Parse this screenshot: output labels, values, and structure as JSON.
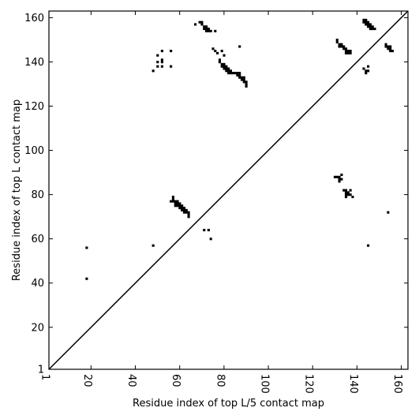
{
  "chart_data": {
    "type": "heatmap",
    "title": "",
    "xlabel": "Residue index of top L/5 contact map",
    "ylabel": "Residue index of top L contact map",
    "xlim": [
      1,
      163
    ],
    "ylim": [
      1,
      163
    ],
    "xticks": [
      1,
      20,
      40,
      60,
      80,
      100,
      120,
      140,
      160
    ],
    "yticks": [
      1,
      20,
      40,
      60,
      80,
      100,
      120,
      140,
      160
    ],
    "grid": false,
    "color": "#000000",
    "diagonal": true,
    "contacts": [
      [
        18,
        56
      ],
      [
        18,
        42
      ],
      [
        48,
        57
      ],
      [
        71,
        64
      ],
      [
        73,
        64
      ],
      [
        74,
        60
      ],
      [
        145,
        57
      ],
      [
        154,
        72
      ],
      [
        48,
        136
      ],
      [
        50,
        140
      ],
      [
        50,
        143
      ],
      [
        52,
        141
      ],
      [
        52,
        140
      ],
      [
        52,
        138
      ],
      [
        52,
        145
      ],
      [
        50,
        138
      ],
      [
        56,
        145
      ],
      [
        56,
        138
      ],
      [
        67,
        157
      ],
      [
        69,
        158
      ],
      [
        70,
        158
      ],
      [
        70,
        157
      ],
      [
        71,
        156
      ],
      [
        72,
        156
      ],
      [
        71,
        155
      ],
      [
        72,
        155
      ],
      [
        73,
        155
      ],
      [
        72,
        154
      ],
      [
        73,
        154
      ],
      [
        74,
        154
      ],
      [
        76,
        154
      ],
      [
        75,
        146
      ],
      [
        76,
        145
      ],
      [
        77,
        144
      ],
      [
        79,
        145
      ],
      [
        80,
        143
      ],
      [
        78,
        141
      ],
      [
        78,
        140
      ],
      [
        79,
        139
      ],
      [
        80,
        139
      ],
      [
        79,
        138
      ],
      [
        80,
        138
      ],
      [
        81,
        138
      ],
      [
        80,
        137
      ],
      [
        81,
        137
      ],
      [
        82,
        137
      ],
      [
        81,
        136
      ],
      [
        82,
        136
      ],
      [
        83,
        136
      ],
      [
        82,
        135
      ],
      [
        83,
        135
      ],
      [
        84,
        135
      ],
      [
        85,
        135
      ],
      [
        86,
        135
      ],
      [
        87,
        135
      ],
      [
        86,
        134
      ],
      [
        87,
        134
      ],
      [
        87,
        133
      ],
      [
        88,
        133
      ],
      [
        89,
        133
      ],
      [
        88,
        132
      ],
      [
        89,
        132
      ],
      [
        89,
        131
      ],
      [
        90,
        131
      ],
      [
        90,
        130
      ],
      [
        90,
        129
      ],
      [
        87,
        147
      ],
      [
        57,
        79
      ],
      [
        57,
        78
      ],
      [
        56,
        77
      ],
      [
        57,
        77
      ],
      [
        58,
        77
      ],
      [
        59,
        77
      ],
      [
        58,
        76
      ],
      [
        59,
        76
      ],
      [
        60,
        76
      ],
      [
        58,
        75
      ],
      [
        59,
        75
      ],
      [
        60,
        75
      ],
      [
        61,
        75
      ],
      [
        60,
        74
      ],
      [
        61,
        74
      ],
      [
        62,
        74
      ],
      [
        61,
        73
      ],
      [
        62,
        73
      ],
      [
        63,
        73
      ],
      [
        62,
        72
      ],
      [
        63,
        72
      ],
      [
        64,
        72
      ],
      [
        64,
        71
      ],
      [
        64,
        70
      ],
      [
        130,
        88
      ],
      [
        131,
        88
      ],
      [
        132,
        88
      ],
      [
        133,
        89
      ],
      [
        132,
        87
      ],
      [
        133,
        87
      ],
      [
        132,
        86
      ],
      [
        134,
        82
      ],
      [
        135,
        82
      ],
      [
        137,
        82
      ],
      [
        135,
        81
      ],
      [
        136,
        81
      ],
      [
        135,
        80
      ],
      [
        136,
        80
      ],
      [
        137,
        80
      ],
      [
        135,
        79
      ],
      [
        138,
        79
      ],
      [
        131,
        150
      ],
      [
        131,
        149
      ],
      [
        132,
        148
      ],
      [
        133,
        148
      ],
      [
        132,
        147
      ],
      [
        133,
        147
      ],
      [
        134,
        147
      ],
      [
        134,
        146
      ],
      [
        135,
        146
      ],
      [
        135,
        145
      ],
      [
        136,
        145
      ],
      [
        137,
        145
      ],
      [
        135,
        144
      ],
      [
        136,
        144
      ],
      [
        137,
        144
      ],
      [
        143,
        137
      ],
      [
        144,
        136
      ],
      [
        145,
        138
      ],
      [
        145,
        136
      ],
      [
        144,
        135
      ],
      [
        143,
        159
      ],
      [
        144,
        159
      ],
      [
        143,
        158
      ],
      [
        144,
        158
      ],
      [
        145,
        158
      ],
      [
        144,
        157
      ],
      [
        145,
        157
      ],
      [
        146,
        157
      ],
      [
        145,
        156
      ],
      [
        146,
        156
      ],
      [
        147,
        156
      ],
      [
        147,
        155
      ],
      [
        146,
        155
      ],
      [
        148,
        155
      ],
      [
        153,
        148
      ],
      [
        153,
        147
      ],
      [
        154,
        147
      ],
      [
        155,
        147
      ],
      [
        154,
        146
      ],
      [
        155,
        146
      ],
      [
        155,
        145
      ],
      [
        156,
        145
      ]
    ]
  }
}
